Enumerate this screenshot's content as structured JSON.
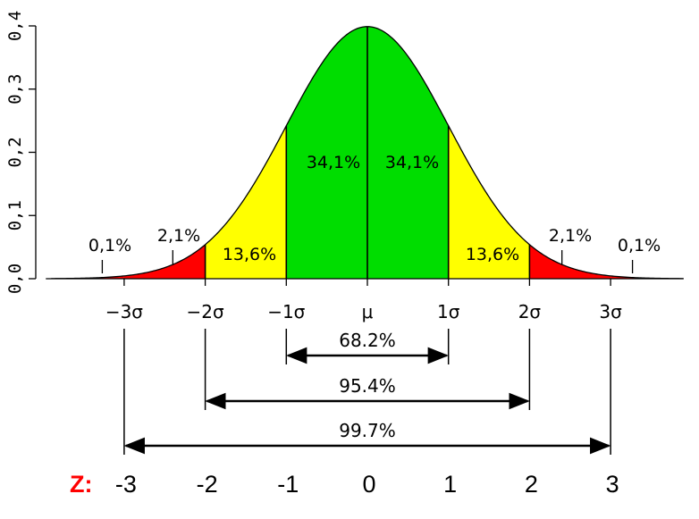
{
  "chart_data": {
    "type": "area",
    "distribution": "standard normal",
    "mu": 0,
    "sigma": 1,
    "xlim": [
      -3.9,
      3.9
    ],
    "ylim": [
      0,
      0.4
    ],
    "y_ticks": [
      "0,0",
      "0,1",
      "0,2",
      "0,3",
      "0,4"
    ],
    "y_tick_values": [
      0,
      0.1,
      0.2,
      0.3,
      0.4
    ],
    "sigma_ticks": [
      {
        "x": -3,
        "label": "−3σ"
      },
      {
        "x": -2,
        "label": "−2σ"
      },
      {
        "x": -1,
        "label": "−1σ"
      },
      {
        "x": 0,
        "label": "μ"
      },
      {
        "x": 1,
        "label": "1σ"
      },
      {
        "x": 2,
        "label": "2σ"
      },
      {
        "x": 3,
        "label": "3σ"
      }
    ],
    "regions": [
      {
        "from": -3.9,
        "to": -3,
        "label": "0,1%",
        "color": "#ff0000"
      },
      {
        "from": -3,
        "to": -2,
        "label": "2,1%",
        "color": "#ff0000"
      },
      {
        "from": -2,
        "to": -1,
        "label": "13,6%",
        "color": "#ffff00"
      },
      {
        "from": -1,
        "to": 0,
        "label": "34,1%",
        "color": "#00dd00"
      },
      {
        "from": 0,
        "to": 1,
        "label": "34,1%",
        "color": "#00dd00"
      },
      {
        "from": 1,
        "to": 2,
        "label": "13,6%",
        "color": "#ffff00"
      },
      {
        "from": 2,
        "to": 3,
        "label": "2,1%",
        "color": "#ff0000"
      },
      {
        "from": 3,
        "to": 3.9,
        "label": "0,1%",
        "color": "#ff0000"
      }
    ],
    "ranges": [
      {
        "from": -1,
        "to": 1,
        "label": "68.2%"
      },
      {
        "from": -2,
        "to": 2,
        "label": "95.4%"
      },
      {
        "from": -3,
        "to": 3,
        "label": "99.7%"
      }
    ],
    "z_label": "Z:",
    "z_label_color": "#ff0000",
    "z_values": [
      {
        "x": -3,
        "label": "-3"
      },
      {
        "x": -2,
        "label": "-2"
      },
      {
        "x": -1,
        "label": "-1"
      },
      {
        "x": 0,
        "label": "0"
      },
      {
        "x": 1,
        "label": "1"
      },
      {
        "x": 2,
        "label": "2"
      },
      {
        "x": 3,
        "label": "3"
      }
    ]
  }
}
